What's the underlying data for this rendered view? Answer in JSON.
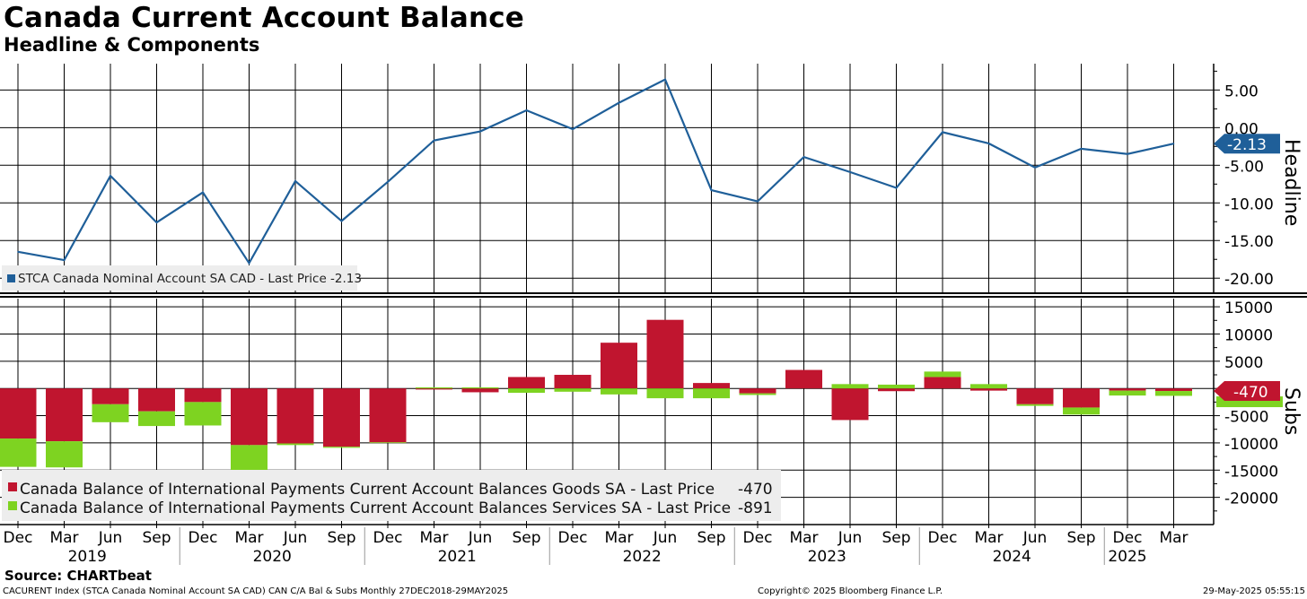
{
  "title": "Canada Current Account Balance",
  "subtitle": "Headline & Components",
  "colors": {
    "headline": "#1f5f99",
    "goods": "#c0152f",
    "services": "#7ed321",
    "grid": "#000000"
  },
  "chart_data": [
    {
      "type": "line",
      "name": "headline",
      "axis_title": "Headline",
      "ylim": [
        -22,
        8.5
      ],
      "yticks": [
        5,
        0,
        -5,
        -10,
        -15,
        -20
      ],
      "ytick_labels": [
        "5.00",
        "0.00",
        "-5.00",
        "-10.00",
        "-15.00",
        "-20.00"
      ],
      "last_value_label": "-2.13",
      "legend": "STCA Canada Nominal Account SA CAD - Last Price -2.13",
      "x": [
        "Dec 2018",
        "Mar 2019",
        "Jun 2019",
        "Sep 2019",
        "Dec 2019",
        "Mar 2020",
        "Jun 2020",
        "Sep 2020",
        "Dec 2020",
        "Mar 2021",
        "Jun 2021",
        "Sep 2021",
        "Dec 2021",
        "Mar 2022",
        "Jun 2022",
        "Sep 2022",
        "Dec 2022",
        "Mar 2023",
        "Jun 2023",
        "Sep 2023",
        "Dec 2023",
        "Mar 2024",
        "Jun 2024",
        "Sep 2024",
        "Dec 2024",
        "Mar 2025"
      ],
      "values": [
        -16.5,
        -17.6,
        -6.4,
        -12.6,
        -8.6,
        -18.0,
        -7.1,
        -12.4,
        -7.2,
        -1.7,
        -0.5,
        2.3,
        -0.2,
        3.3,
        6.4,
        -8.3,
        -9.8,
        -3.9,
        -5.9,
        -8.0,
        -0.6,
        -2.1,
        -5.3,
        -2.8,
        -3.5,
        -2.13
      ]
    },
    {
      "type": "bar",
      "stacked": true,
      "name": "subs",
      "axis_title": "Subs",
      "ylim": [
        -25000,
        16500
      ],
      "yticks": [
        15000,
        10000,
        5000,
        0,
        -5000,
        -10000,
        -15000,
        -20000
      ],
      "ytick_labels": [
        "15000",
        "10000",
        "5000",
        "",
        "-5000",
        "-10000",
        "-15000",
        "-20000"
      ],
      "last_value_label": "-470",
      "categories": [
        "Dec 2018",
        "Mar 2019",
        "Jun 2019",
        "Sep 2019",
        "Dec 2019",
        "Mar 2020",
        "Jun 2020",
        "Sep 2020",
        "Dec 2020",
        "Mar 2021",
        "Jun 2021",
        "Sep 2021",
        "Dec 2021",
        "Mar 2022",
        "Jun 2022",
        "Sep 2022",
        "Dec 2022",
        "Mar 2023",
        "Jun 2023",
        "Sep 2023",
        "Dec 2023",
        "Mar 2024",
        "Jun 2024",
        "Sep 2024",
        "Dec 2024",
        "Mar 2025"
      ],
      "series": [
        {
          "name": "goods",
          "legend_label": "Canada Balance of International Payments Current Account Balances Goods SA - Last Price",
          "legend_value": "-470",
          "values": [
            -9200,
            -9700,
            -2900,
            -4200,
            -2500,
            -10400,
            -10100,
            -10700,
            -9900,
            -200,
            -700,
            2100,
            2500,
            8400,
            12600,
            1000,
            -900,
            3400,
            -5800,
            -500,
            2100,
            -400,
            -2900,
            -3500,
            -400,
            -470
          ]
        },
        {
          "name": "services",
          "legend_label": "Canada Balance of International Payments Current Account Balances Services SA - Last Price",
          "legend_value": "-891",
          "values": [
            -5200,
            -4800,
            -3300,
            -2700,
            -4300,
            -8200,
            -300,
            -200,
            -100,
            200,
            200,
            -800,
            -600,
            -1100,
            -1800,
            -1800,
            -300,
            0,
            800,
            700,
            1000,
            800,
            -300,
            -1300,
            -900,
            -891
          ]
        }
      ]
    }
  ],
  "x_axis": {
    "months": [
      "Dec",
      "Mar",
      "Jun",
      "Sep",
      "Dec",
      "Mar",
      "Jun",
      "Sep",
      "Dec",
      "Mar",
      "Jun",
      "Sep",
      "Dec",
      "Mar",
      "Jun",
      "Sep",
      "Dec",
      "Mar",
      "Jun",
      "Sep",
      "Dec",
      "Mar",
      "Jun",
      "Sep",
      "Dec",
      "Mar"
    ],
    "years": [
      "2019",
      "2020",
      "2021",
      "2022",
      "2023",
      "2024",
      "2025"
    ]
  },
  "footer": {
    "source": "Source: CHARTbeat",
    "left": "CACURENT Index (STCA Canada Nominal Account SA CAD) CAN C/A Bal & Subs  Monthly 27DEC2018-29MAY2025",
    "middle": "Copyright© 2025 Bloomberg Finance L.P.",
    "right": "29-May-2025 05:55:15"
  }
}
